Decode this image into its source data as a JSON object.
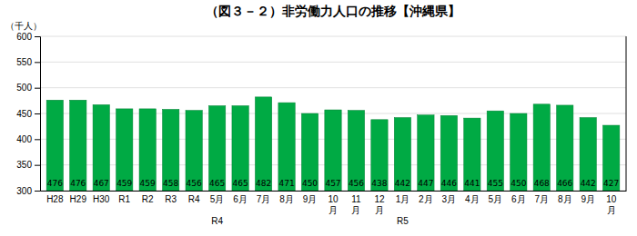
{
  "chart_data": {
    "type": "bar",
    "title": "（図３－２）非労働力人口の推移【沖縄県】",
    "y_label": "（千人）",
    "categories": [
      "H28",
      "H29",
      "H30",
      "R1",
      "R2",
      "R3",
      "R4",
      "5月\n\nR4",
      "6月",
      "7月",
      "8月",
      "9月",
      "10\n月",
      "11\n月",
      "12\n月",
      "1月\n\nR5",
      "2月",
      "3月",
      "4月",
      "5月",
      "6月",
      "7月",
      "8月",
      "9月",
      "10\n月"
    ],
    "values": [
      476,
      476,
      467,
      459,
      459,
      458,
      456,
      465,
      465,
      482,
      471,
      450,
      457,
      456,
      438,
      442,
      447,
      446,
      441,
      455,
      450,
      468,
      466,
      442,
      427
    ],
    "color": "#00AA44",
    "ylim": [
      300,
      600
    ],
    "yticks": [
      300,
      350,
      400,
      450,
      500,
      550,
      600
    ],
    "grid": true,
    "data_labels": true
  }
}
